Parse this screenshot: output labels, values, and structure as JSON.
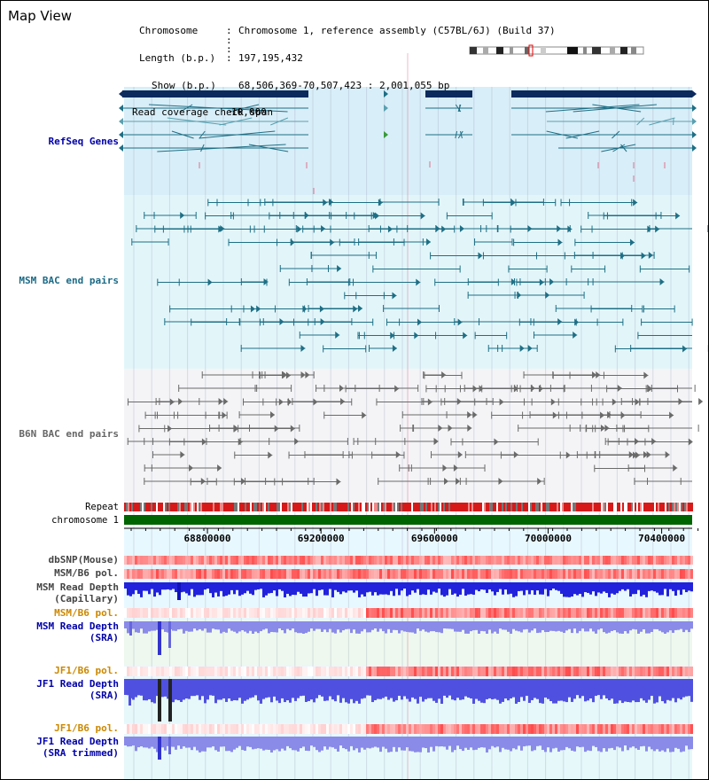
{
  "title": "Map View",
  "info": {
    "chromosome_key": "Chromosome",
    "chromosome_value": "Chromosome 1, reference assembly (C57BL/6J) (Build 37)",
    "length_key": "Length (b.p.)",
    "length_value": "197,195,432",
    "show_key": "Show (b.p.)",
    "show_value": "68,506,369-70,507,423 : 2,001,055 bp",
    "coverage_key": "Read coverage check span",
    "coverage_value": "10,000"
  },
  "tracks": {
    "refseq": "RefSeq Genes",
    "msm_bac": "MSM BAC end pairs",
    "b6n_bac": "B6N BAC end pairs",
    "repeat": "Repeat",
    "chromosome": "chromosome 1",
    "dbsnp": "dbSNP(Mouse)",
    "msm_b6_pol_1": "MSM/B6 pol.",
    "msm_depth_cap_1": "MSM Read Depth",
    "msm_depth_cap_2": "(Capillary)",
    "msm_b6_pol_2": "MSM/B6 pol.",
    "msm_depth_sra_1": "MSM Read Depth",
    "msm_depth_sra_2": "(SRA)",
    "jf1_b6_pol_1": "JF1/B6 pol.",
    "jf1_depth_sra_1": "JF1 Read Depth",
    "jf1_depth_sra_2": "(SRA)",
    "jf1_b6_pol_2": "JF1/B6 pol.",
    "jf1_depth_trim_1": "JF1 Read Depth",
    "jf1_depth_trim_2": "(SRA trimmed)"
  },
  "axis": {
    "ticks": [
      "68800000",
      "69200000",
      "69600000",
      "70000000",
      "70400000"
    ],
    "tick_values": [
      68800000,
      69200000,
      69600000,
      70000000,
      70400000
    ],
    "range": [
      68506369,
      70507423
    ]
  },
  "colors": {
    "refseq_bg": "#d8eef8",
    "msm_bg": "#e2f6fa",
    "b6n_bg": "#f4f4f7",
    "gene_dark": "#0c2a5c",
    "msm_feature": "#1e6f85",
    "b6n_feature": "#6a6a6a",
    "chromosome_bar": "#006400",
    "depth_blue": "#2222dd",
    "refseq_label": "#0000aa",
    "msm_label": "#1b6a86",
    "b6n_label": "#666666",
    "pol_label": "#cc8800"
  }
}
